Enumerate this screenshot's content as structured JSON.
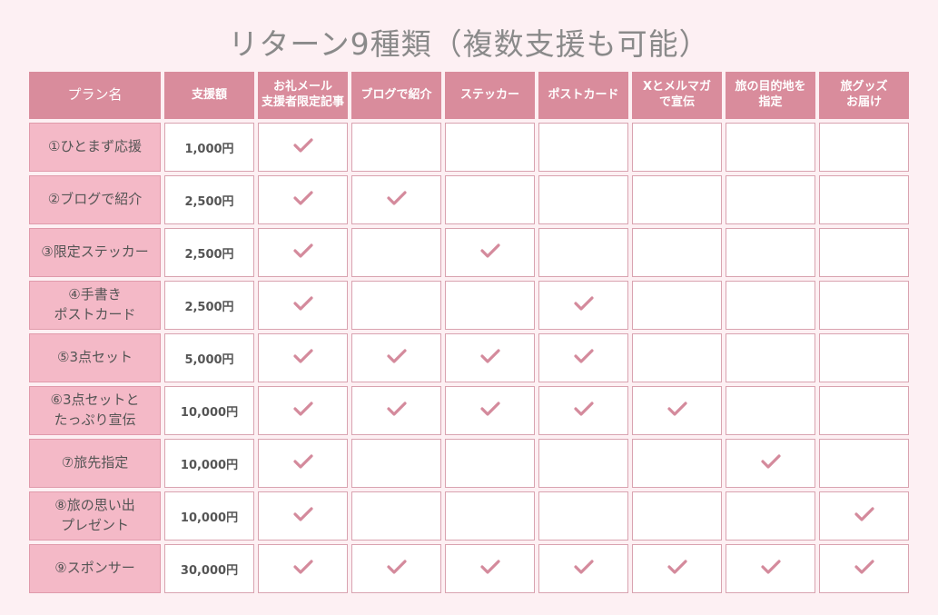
{
  "title": "リターン9種類（複数支援も可能）",
  "colors": {
    "header": "#d98c9c",
    "name_cell": "#f4b9c7",
    "check": "#d48a9c",
    "background": "#fdf0f3"
  },
  "headers": [
    "プラン名",
    "支援額",
    "お礼メール\n支援者限定記事",
    "ブログで紹介",
    "ステッカー",
    "ポストカード",
    "Xとメルマガ\nで宣伝",
    "旅の目的地を\n指定",
    "旅グッズ\nお届け"
  ],
  "rows": [
    {
      "name": "①ひとまず応援",
      "price": "1,000円",
      "checks": [
        1,
        0,
        0,
        0,
        0,
        0,
        0
      ]
    },
    {
      "name": "②ブログで紹介",
      "price": "2,500円",
      "checks": [
        1,
        1,
        0,
        0,
        0,
        0,
        0
      ]
    },
    {
      "name": "③限定ステッカー",
      "price": "2,500円",
      "checks": [
        1,
        0,
        1,
        0,
        0,
        0,
        0
      ]
    },
    {
      "name": "④手書き\nポストカード",
      "price": "2,500円",
      "checks": [
        1,
        0,
        0,
        1,
        0,
        0,
        0
      ]
    },
    {
      "name": "⑤3点セット",
      "price": "5,000円",
      "checks": [
        1,
        1,
        1,
        1,
        0,
        0,
        0
      ]
    },
    {
      "name": "⑥3点セットと\nたっぷり宣伝",
      "price": "10,000円",
      "checks": [
        1,
        1,
        1,
        1,
        1,
        0,
        0
      ]
    },
    {
      "name": "⑦旅先指定",
      "price": "10,000円",
      "checks": [
        1,
        0,
        0,
        0,
        0,
        1,
        0
      ]
    },
    {
      "name": "⑧旅の思い出\nプレゼント",
      "price": "10,000円",
      "checks": [
        1,
        0,
        0,
        0,
        0,
        0,
        1
      ]
    },
    {
      "name": "⑨スポンサー",
      "price": "30,000円",
      "checks": [
        1,
        1,
        1,
        1,
        1,
        1,
        1
      ]
    }
  ],
  "check_icon": "checkmark-icon"
}
